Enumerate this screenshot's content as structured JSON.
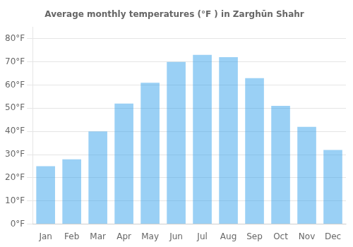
{
  "chart_data": {
    "type": "bar",
    "title": "Average monthly temperatures (°F ) in Zarghūn Shahr",
    "categories": [
      "Jan",
      "Feb",
      "Mar",
      "Apr",
      "May",
      "Jun",
      "Jul",
      "Aug",
      "Sep",
      "Oct",
      "Nov",
      "Dec"
    ],
    "values": [
      25,
      28,
      40,
      52,
      61,
      70,
      73,
      72,
      63,
      51,
      42,
      32
    ],
    "ylim": [
      0,
      85
    ],
    "yticks": [
      {
        "value": 0,
        "label": "0°F"
      },
      {
        "value": 10,
        "label": "10°F"
      },
      {
        "value": 20,
        "label": "20°F"
      },
      {
        "value": 30,
        "label": "30°F"
      },
      {
        "value": 40,
        "label": "40°F"
      },
      {
        "value": 50,
        "label": "50°F"
      },
      {
        "value": 60,
        "label": "60°F"
      },
      {
        "value": 70,
        "label": "70°F"
      },
      {
        "value": 80,
        "label": "80°F"
      }
    ],
    "grid": true
  }
}
